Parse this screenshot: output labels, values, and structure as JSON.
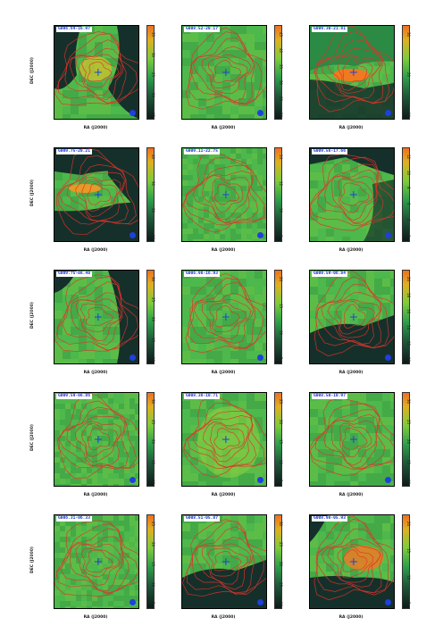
{
  "figure": {
    "panels": [
      {
        "label": "G006.64-16.97",
        "xlabel": "RA (J2000)",
        "ylabel": "DEC (J2000)",
        "cbar_ticks": [
          "15",
          "20",
          "25",
          "30",
          "35"
        ],
        "style": "orange-core"
      },
      {
        "label": "G008.52-20.17",
        "xlabel": "RA (J2000)",
        "ylabel": "",
        "cbar_ticks": [
          "20",
          "25",
          "30",
          "35",
          "40",
          "45"
        ],
        "style": "green"
      },
      {
        "label": "G009.30-21.81",
        "xlabel": "RA (J2000)",
        "ylabel": "",
        "cbar_ticks": [
          "10",
          "20",
          "30"
        ],
        "style": "orange-band"
      },
      {
        "label": "G009.75-20.21",
        "xlabel": "RA (J2000)",
        "ylabel": "DEC (J2000)",
        "cbar_ticks": [
          "10",
          "20",
          "30",
          "40"
        ],
        "style": "band-dark"
      },
      {
        "label": "G009.11-22.75",
        "xlabel": "RA (J2000)",
        "ylabel": "",
        "cbar_ticks": [
          "8",
          "10",
          "12",
          "14"
        ],
        "style": "green-pixel"
      },
      {
        "label": "G009.56-17.66",
        "xlabel": "RA (J2000)",
        "ylabel": "",
        "cbar_ticks": [
          "2",
          "4",
          "6",
          "8",
          "10",
          "12"
        ],
        "style": "green-dark"
      },
      {
        "label": "G009.75-08.40",
        "xlabel": "RA (J2000)",
        "ylabel": "DEC (J2000)",
        "cbar_ticks": [
          "10",
          "15",
          "20",
          "25",
          "30"
        ],
        "style": "green-dark-right"
      },
      {
        "label": "G006.98-16.93",
        "xlabel": "RA (J2000)",
        "ylabel": "",
        "cbar_ticks": [
          "5",
          "10",
          "15",
          "20"
        ],
        "style": "green"
      },
      {
        "label": "G009.59-06.84",
        "xlabel": "RA (J2000)",
        "ylabel": "",
        "cbar_ticks": [
          "10",
          "12",
          "14",
          "16",
          "18",
          "20"
        ],
        "style": "green-dark-bottom"
      },
      {
        "label": "G009.59-06.86",
        "xlabel": "RA (J2000)",
        "ylabel": "DEC (J2000)",
        "cbar_ticks": [
          "10",
          "15",
          "20",
          "25",
          "30"
        ],
        "style": "green-pixel"
      },
      {
        "label": "G008.38-10.71",
        "xlabel": "RA (J2000)",
        "ylabel": "",
        "cbar_ticks": [
          "5",
          "10",
          "15",
          "20",
          "25"
        ],
        "style": "green-light"
      },
      {
        "label": "G008.50-10.97",
        "xlabel": "RA (J2000)",
        "ylabel": "",
        "cbar_ticks": [
          "10",
          "15",
          "20",
          "25",
          "30"
        ],
        "style": "green"
      },
      {
        "label": "G006.31-06.33",
        "xlabel": "RA (J2000)",
        "ylabel": "DEC (J2000)",
        "cbar_ticks": [
          "5",
          "10",
          "15",
          "20",
          "25"
        ],
        "style": "green-pixel"
      },
      {
        "label": "G008.51-05.87",
        "xlabel": "RA (J2000)",
        "ylabel": "",
        "cbar_ticks": [
          "10",
          "15",
          "20",
          "25",
          "30"
        ],
        "style": "green-dark-bottom"
      },
      {
        "label": "G008.98-05.93",
        "xlabel": "RA (J2000)",
        "ylabel": "",
        "cbar_ticks": [
          "5",
          "10",
          "15",
          "20"
        ],
        "style": "orange-dark"
      }
    ]
  }
}
